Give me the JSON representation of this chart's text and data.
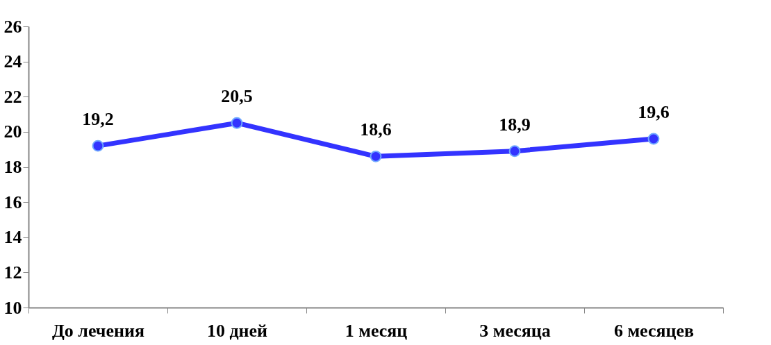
{
  "chart_data": {
    "type": "line",
    "categories": [
      "До лечения",
      "10 дней",
      "1 месяц",
      "3 месяца",
      "6 месяцев"
    ],
    "series": [
      {
        "color": "#3333ff",
        "values": [
          19.2,
          20.5,
          18.6,
          18.9,
          19.6
        ],
        "value_labels": [
          "19,2",
          "20,5",
          "18,6",
          "18,9",
          "19,6"
        ]
      }
    ],
    "ylim": [
      10,
      26
    ],
    "yticks": [
      10,
      12,
      14,
      16,
      18,
      20,
      22,
      24,
      26
    ],
    "marker": "circle",
    "line_style": "solid",
    "grid": false
  }
}
